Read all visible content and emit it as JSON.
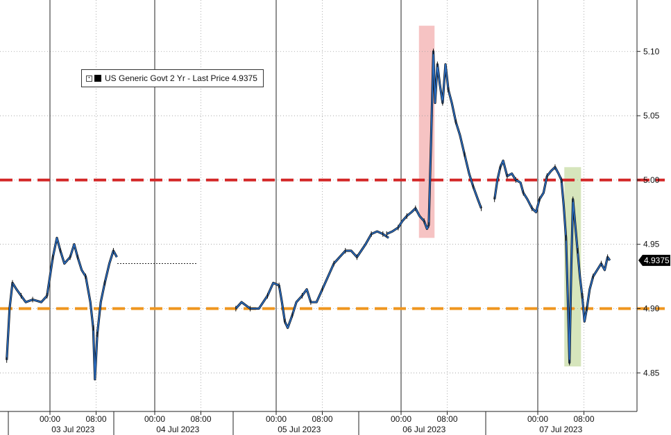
{
  "chart_data": {
    "type": "line",
    "title": "",
    "xlabel": "",
    "ylabel": "",
    "legend": {
      "text": "US Generic Govt 2 Yr - Last Price 4.9375",
      "placement": "top-left"
    },
    "last_price_label": "4.9375",
    "last_price": 4.9375,
    "ylim": [
      4.82,
      5.14
    ],
    "y_ticks": [
      {
        "value": 4.85,
        "label": "4.85"
      },
      {
        "value": 4.9,
        "label": "4.90"
      },
      {
        "value": 4.95,
        "label": "4.95"
      },
      {
        "value": 5.0,
        "label": "5.00"
      },
      {
        "value": 5.05,
        "label": "5.05"
      },
      {
        "value": 5.1,
        "label": "5.10"
      }
    ],
    "x_axis": {
      "sessions": [
        {
          "date": "03 Jul 2023",
          "times": [
            "00:00",
            "08:00"
          ]
        },
        {
          "date": "04 Jul 2023",
          "times": [
            "00:00",
            "08:00"
          ]
        },
        {
          "date": "05 Jul 2023",
          "times": [
            "00:00",
            "08:00"
          ]
        },
        {
          "date": "06 Jul 2023",
          "times": [
            "00:00",
            "08:00"
          ]
        },
        {
          "date": "07 Jul 2023",
          "times": [
            "00:00",
            "08:00"
          ]
        }
      ]
    },
    "reference_lines": [
      {
        "value": 5.0,
        "color": "#d42a2a",
        "style": "dashed"
      },
      {
        "value": 4.9,
        "color": "#ef961f",
        "style": "dashed"
      }
    ],
    "highlights": [
      {
        "session": "06 Jul 2023",
        "from_hour": 3.1,
        "to_hour": 5.8,
        "y_range": [
          4.955,
          5.12
        ],
        "color": "#f4b8b8"
      },
      {
        "session": "07 Jul 2023",
        "from_hour": 4.6,
        "to_hour": 7.5,
        "y_range": [
          4.855,
          5.01
        ],
        "color": "#cfe0b0"
      }
    ],
    "series": [
      {
        "color": "#2a6cc0",
        "segments": [
          {
            "session": "03 Jul 2023",
            "points": [
              [
                -7.5,
                4.86
              ],
              [
                -7.0,
                4.9
              ],
              [
                -6.5,
                4.92
              ],
              [
                -5.8,
                4.915
              ],
              [
                -5.0,
                4.91
              ],
              [
                -4.2,
                4.905
              ],
              [
                -3.0,
                4.907
              ],
              [
                -1.5,
                4.905
              ],
              [
                -0.5,
                4.91
              ],
              [
                0.0,
                4.925
              ],
              [
                0.5,
                4.94
              ],
              [
                1.2,
                4.955
              ],
              [
                1.8,
                4.945
              ],
              [
                2.5,
                4.935
              ],
              [
                3.5,
                4.94
              ],
              [
                4.2,
                4.95
              ],
              [
                4.8,
                4.94
              ],
              [
                5.5,
                4.93
              ],
              [
                6.2,
                4.925
              ],
              [
                7.0,
                4.905
              ],
              [
                7.5,
                4.885
              ],
              [
                7.8,
                4.845
              ],
              [
                8.2,
                4.88
              ],
              [
                8.8,
                4.905
              ],
              [
                9.5,
                4.92
              ],
              [
                10.3,
                4.935
              ],
              [
                11.0,
                4.945
              ],
              [
                11.6,
                4.94
              ]
            ]
          },
          {
            "session": "04 Jul 2023",
            "points": [
              [
                -6.5,
                4.935
              ],
              [
                7.4,
                4.935
              ]
            ],
            "style": "dotted"
          },
          {
            "session": "05 Jul 2023",
            "points": [
              [
                -7.0,
                4.9
              ],
              [
                -6.0,
                4.905
              ],
              [
                -4.5,
                4.9
              ],
              [
                -3.0,
                4.9
              ],
              [
                -1.5,
                4.91
              ],
              [
                -0.5,
                4.92
              ],
              [
                0.5,
                4.918
              ],
              [
                1.0,
                4.905
              ],
              [
                1.5,
                4.89
              ],
              [
                2.0,
                4.885
              ],
              [
                2.8,
                4.895
              ],
              [
                3.5,
                4.905
              ],
              [
                4.5,
                4.91
              ],
              [
                5.3,
                4.915
              ],
              [
                6.0,
                4.905
              ],
              [
                7.0,
                4.905
              ],
              [
                8.0,
                4.915
              ],
              [
                9.0,
                4.925
              ],
              [
                10.0,
                4.935
              ],
              [
                11.0,
                4.94
              ],
              [
                12.0,
                4.945
              ],
              [
                13.0,
                4.945
              ],
              [
                14.0,
                4.94
              ],
              [
                15.5,
                4.95
              ],
              [
                16.5,
                4.958
              ],
              [
                17.5,
                4.96
              ],
              [
                18.5,
                4.958
              ],
              [
                19.5,
                4.955
              ]
            ]
          },
          {
            "session": "06 Jul 2023",
            "points": [
              [
                -2.5,
                4.958
              ],
              [
                -1.5,
                4.96
              ],
              [
                -0.5,
                4.963
              ],
              [
                0.2,
                4.968
              ],
              [
                1.0,
                4.972
              ],
              [
                1.8,
                4.975
              ],
              [
                2.5,
                4.978
              ],
              [
                3.2,
                4.972
              ],
              [
                4.0,
                4.968
              ],
              [
                4.5,
                4.962
              ],
              [
                4.8,
                4.965
              ],
              [
                5.2,
                5.03
              ],
              [
                5.6,
                5.1
              ],
              [
                5.9,
                5.06
              ],
              [
                6.3,
                5.09
              ],
              [
                6.7,
                5.075
              ],
              [
                7.2,
                5.06
              ],
              [
                7.7,
                5.09
              ],
              [
                8.2,
                5.07
              ],
              [
                8.8,
                5.06
              ],
              [
                9.5,
                5.045
              ],
              [
                10.2,
                5.035
              ],
              [
                11.0,
                5.02
              ],
              [
                11.8,
                5.005
              ],
              [
                12.5,
                4.995
              ],
              [
                13.3,
                4.985
              ],
              [
                13.9,
                4.978
              ]
            ]
          },
          {
            "session": "07 Jul 2023",
            "points": [
              [
                -7.5,
                4.985
              ],
              [
                -7.0,
                5.0
              ],
              [
                -6.5,
                5.01
              ],
              [
                -6.0,
                5.015
              ],
              [
                -5.3,
                5.003
              ],
              [
                -4.5,
                5.005
              ],
              [
                -3.8,
                5.0
              ],
              [
                -3.0,
                4.998
              ],
              [
                -2.5,
                4.99
              ],
              [
                -1.8,
                4.985
              ],
              [
                -1.0,
                4.978
              ],
              [
                -0.3,
                4.975
              ],
              [
                0.3,
                4.985
              ],
              [
                1.0,
                4.99
              ],
              [
                1.6,
                5.003
              ],
              [
                2.3,
                5.007
              ],
              [
                3.0,
                5.01
              ],
              [
                3.6,
                5.005
              ],
              [
                4.1,
                5.0
              ],
              [
                4.5,
                4.98
              ],
              [
                4.9,
                4.955
              ],
              [
                5.2,
                4.91
              ],
              [
                5.5,
                4.858
              ],
              [
                5.8,
                4.93
              ],
              [
                6.1,
                4.985
              ],
              [
                6.5,
                4.965
              ],
              [
                6.9,
                4.945
              ],
              [
                7.3,
                4.925
              ],
              [
                7.7,
                4.91
              ],
              [
                8.1,
                4.89
              ],
              [
                8.5,
                4.9
              ],
              [
                9.0,
                4.915
              ],
              [
                9.6,
                4.925
              ],
              [
                10.3,
                4.93
              ],
              [
                11.0,
                4.935
              ],
              [
                11.6,
                4.93
              ],
              [
                12.1,
                4.94
              ],
              [
                12.5,
                4.9375
              ]
            ]
          }
        ]
      }
    ]
  }
}
